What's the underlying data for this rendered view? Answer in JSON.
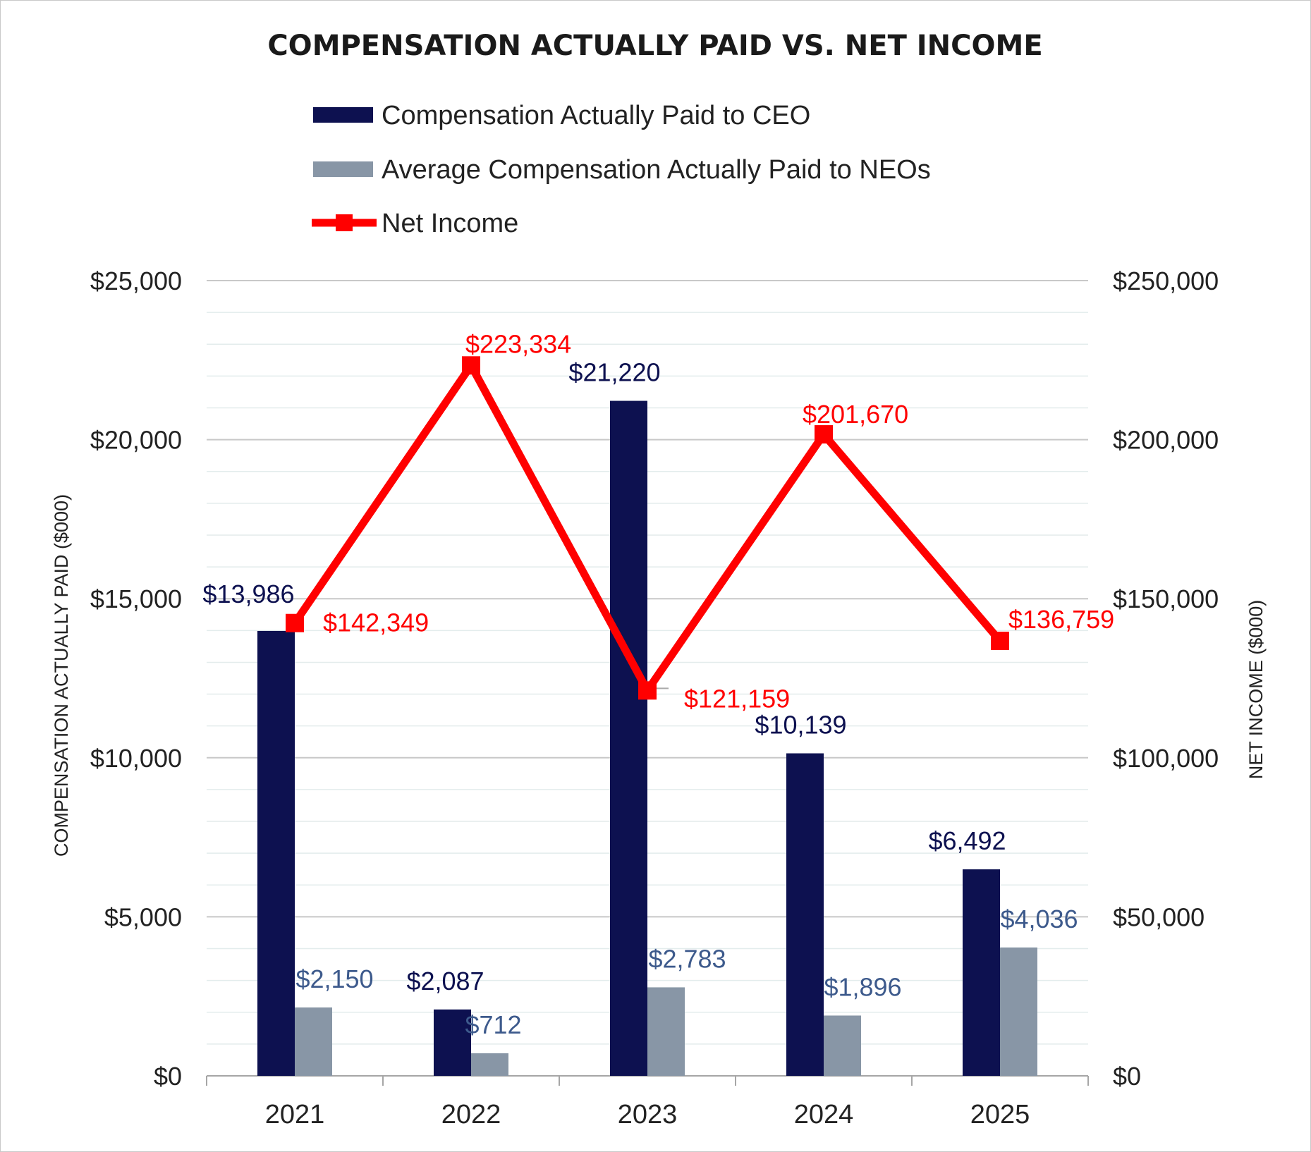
{
  "chart_data": {
    "type": "bar+line",
    "title": "COMPENSATION ACTUALLY PAID VS. NET INCOME",
    "categories": [
      "2021",
      "2022",
      "2023",
      "2024",
      "2025"
    ],
    "series": [
      {
        "name": "Compensation Actually Paid to CEO",
        "type": "bar",
        "axis": "left",
        "color": "#0d1150",
        "values": [
          13986,
          2087,
          21220,
          10139,
          6492
        ],
        "labels": [
          "$13,986",
          "$2,087",
          "$21,220",
          "$10,139",
          "$6,492"
        ]
      },
      {
        "name": "Average Compensation Actually Paid to NEOs",
        "type": "bar",
        "axis": "left",
        "color": "#8896a6",
        "label_color": "#3d5a8c",
        "values": [
          2150,
          712,
          2783,
          1896,
          4036
        ],
        "labels": [
          "$2,150",
          "$712",
          "$2,783",
          "$1,896",
          "$4,036"
        ]
      },
      {
        "name": "Net Income",
        "type": "line",
        "axis": "right",
        "color": "#ff0000",
        "values": [
          142349,
          223334,
          121159,
          201670,
          136759
        ],
        "labels": [
          "$142,349",
          "$223,334",
          "$121,159",
          "$201,670",
          "$136,759"
        ]
      }
    ],
    "y_left": {
      "label": "COMPENSATION ACTUALLY PAID ($000)",
      "min": 0,
      "max": 25000,
      "ticks": [
        0,
        5000,
        10000,
        15000,
        20000,
        25000
      ],
      "tick_labels": [
        "$0",
        "$5,000",
        "$10,000",
        "$15,000",
        "$20,000",
        "$25,000"
      ]
    },
    "y_right": {
      "label": "NET INCOME ($000)",
      "min": 0,
      "max": 250000,
      "ticks": [
        0,
        50000,
        100000,
        150000,
        200000,
        250000
      ],
      "tick_labels": [
        "$0",
        "$50,000",
        "$100,000",
        "$150,000",
        "$200,000",
        "$250,000"
      ]
    },
    "legend_position": "top-center",
    "grid": true
  }
}
